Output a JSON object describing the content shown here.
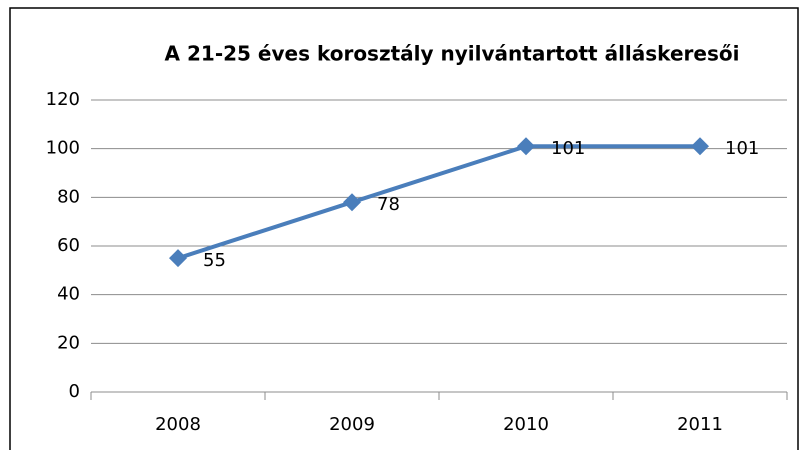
{
  "chart_data": {
    "type": "line",
    "title": "A 21-25 éves korosztály nyilvántartott álláskeresői",
    "categories": [
      "2008",
      "2009",
      "2010",
      "2011"
    ],
    "series": [
      {
        "name": "A 21-25 éves korosztály nyilvántartott álláskeresői",
        "color": "#4a7ebb",
        "values": [
          55,
          78,
          101,
          101
        ]
      }
    ],
    "ylim": [
      0,
      120
    ],
    "yticks": [
      0,
      20,
      40,
      60,
      80,
      100,
      120
    ],
    "grid": true,
    "data_labels": true
  }
}
